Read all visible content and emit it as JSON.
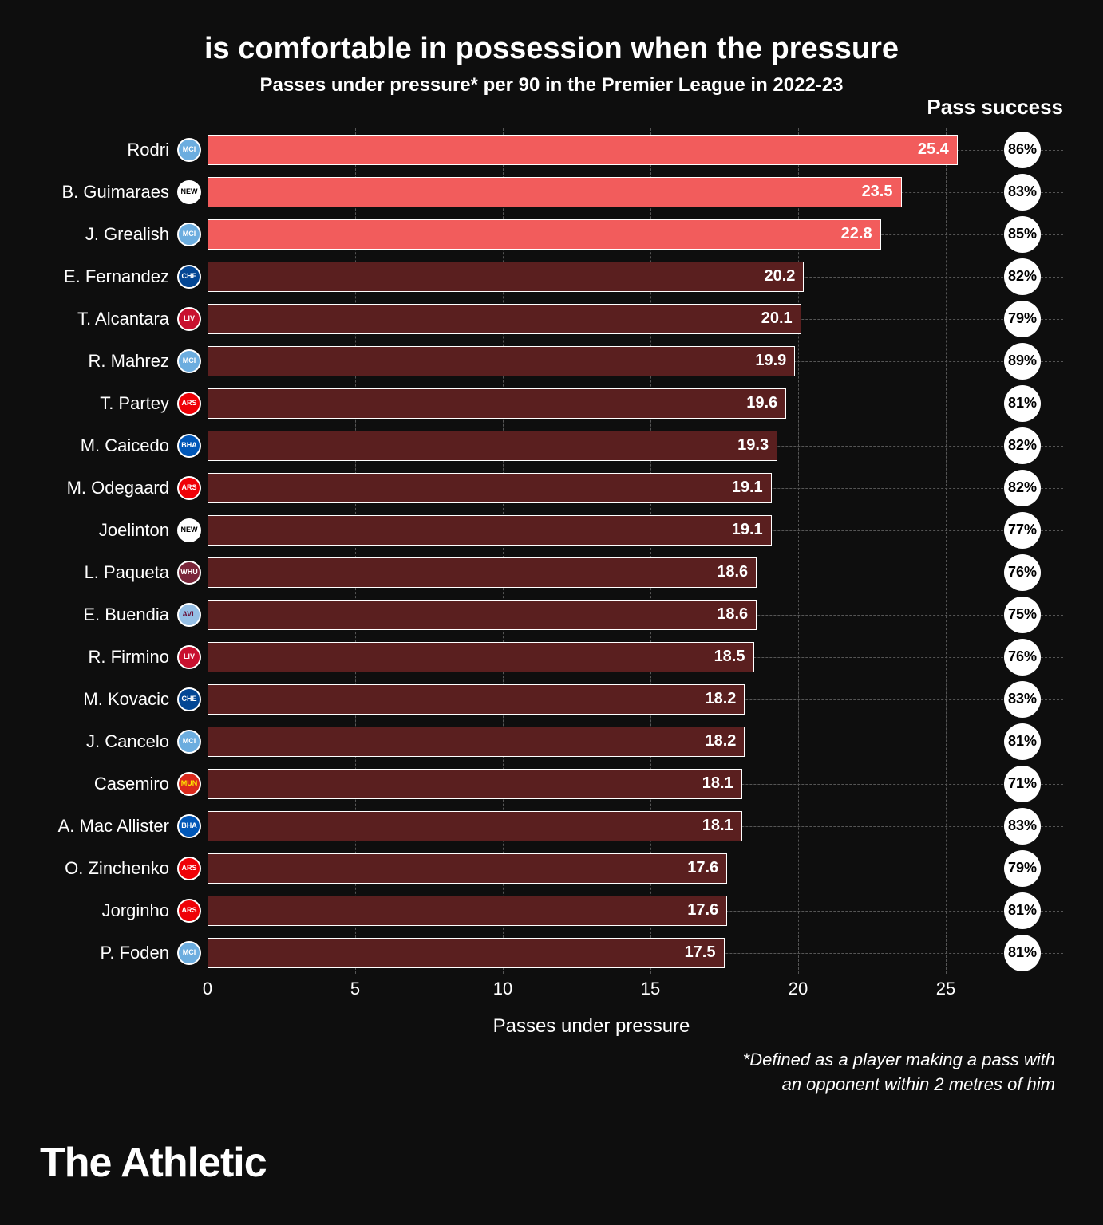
{
  "title": "is comfortable in possession when the pressure",
  "subtitle": "Passes under pressure* per 90 in the Premier League in 2022-23",
  "pass_success_header": "Pass success",
  "xlabel": "Passes under pressure",
  "footnote_line1": "*Defined as a player making a pass with",
  "footnote_line2": "an opponent within 2 metres of him",
  "brand": "The Athletic",
  "chart": {
    "type": "bar",
    "xmax": 26,
    "xtick_step": 5,
    "xticks": [
      0,
      5,
      10,
      15,
      20,
      25
    ],
    "bar_border": "#ffffff",
    "grid_color": "#555555",
    "background": "#0e0e0e",
    "highlight_color": "#f25c5c",
    "normal_color": "#5a1f1f",
    "circle_bg": "#ffffff",
    "circle_fg": "#000000",
    "rows": [
      {
        "player": "Rodri",
        "team": "MCI",
        "team_bg": "#6caddf",
        "team_fg": "#ffffff",
        "value": 25.4,
        "success": "86%",
        "highlight": true
      },
      {
        "player": "B. Guimaraes",
        "team": "NEW",
        "team_bg": "#ffffff",
        "team_fg": "#000000",
        "value": 23.5,
        "success": "83%",
        "highlight": true
      },
      {
        "player": "J. Grealish",
        "team": "MCI",
        "team_bg": "#6caddf",
        "team_fg": "#ffffff",
        "value": 22.8,
        "success": "85%",
        "highlight": true
      },
      {
        "player": "E. Fernandez",
        "team": "CHE",
        "team_bg": "#034694",
        "team_fg": "#ffffff",
        "value": 20.2,
        "success": "82%",
        "highlight": false
      },
      {
        "player": "T. Alcantara",
        "team": "LIV",
        "team_bg": "#c8102e",
        "team_fg": "#ffffff",
        "value": 20.1,
        "success": "79%",
        "highlight": false
      },
      {
        "player": "R. Mahrez",
        "team": "MCI",
        "team_bg": "#6caddf",
        "team_fg": "#ffffff",
        "value": 19.9,
        "success": "89%",
        "highlight": false
      },
      {
        "player": "T. Partey",
        "team": "ARS",
        "team_bg": "#ef0107",
        "team_fg": "#ffffff",
        "value": 19.6,
        "success": "81%",
        "highlight": false
      },
      {
        "player": "M. Caicedo",
        "team": "BHA",
        "team_bg": "#0057b8",
        "team_fg": "#ffffff",
        "value": 19.3,
        "success": "82%",
        "highlight": false
      },
      {
        "player": "M. Odegaard",
        "team": "ARS",
        "team_bg": "#ef0107",
        "team_fg": "#ffffff",
        "value": 19.1,
        "success": "82%",
        "highlight": false
      },
      {
        "player": "Joelinton",
        "team": "NEW",
        "team_bg": "#ffffff",
        "team_fg": "#000000",
        "value": 19.1,
        "success": "77%",
        "highlight": false
      },
      {
        "player": "L. Paqueta",
        "team": "WHU",
        "team_bg": "#7a263a",
        "team_fg": "#ffffff",
        "value": 18.6,
        "success": "76%",
        "highlight": false
      },
      {
        "player": "E. Buendia",
        "team": "AVL",
        "team_bg": "#95bfe5",
        "team_fg": "#670e36",
        "value": 18.6,
        "success": "75%",
        "highlight": false
      },
      {
        "player": "R. Firmino",
        "team": "LIV",
        "team_bg": "#c8102e",
        "team_fg": "#ffffff",
        "value": 18.5,
        "success": "76%",
        "highlight": false
      },
      {
        "player": "M. Kovacic",
        "team": "CHE",
        "team_bg": "#034694",
        "team_fg": "#ffffff",
        "value": 18.2,
        "success": "83%",
        "highlight": false
      },
      {
        "player": "J. Cancelo",
        "team": "MCI",
        "team_bg": "#6caddf",
        "team_fg": "#ffffff",
        "value": 18.2,
        "success": "81%",
        "highlight": false
      },
      {
        "player": "Casemiro",
        "team": "MUN",
        "team_bg": "#da291c",
        "team_fg": "#ffe500",
        "value": 18.1,
        "success": "71%",
        "highlight": false
      },
      {
        "player": "A. Mac Allister",
        "team": "BHA",
        "team_bg": "#0057b8",
        "team_fg": "#ffffff",
        "value": 18.1,
        "success": "83%",
        "highlight": false
      },
      {
        "player": "O. Zinchenko",
        "team": "ARS",
        "team_bg": "#ef0107",
        "team_fg": "#ffffff",
        "value": 17.6,
        "success": "79%",
        "highlight": false
      },
      {
        "player": "Jorginho",
        "team": "ARS",
        "team_bg": "#ef0107",
        "team_fg": "#ffffff",
        "value": 17.6,
        "success": "81%",
        "highlight": false
      },
      {
        "player": "P. Foden",
        "team": "MCI",
        "team_bg": "#6caddf",
        "team_fg": "#ffffff",
        "value": 17.5,
        "success": "81%",
        "highlight": false
      }
    ]
  }
}
